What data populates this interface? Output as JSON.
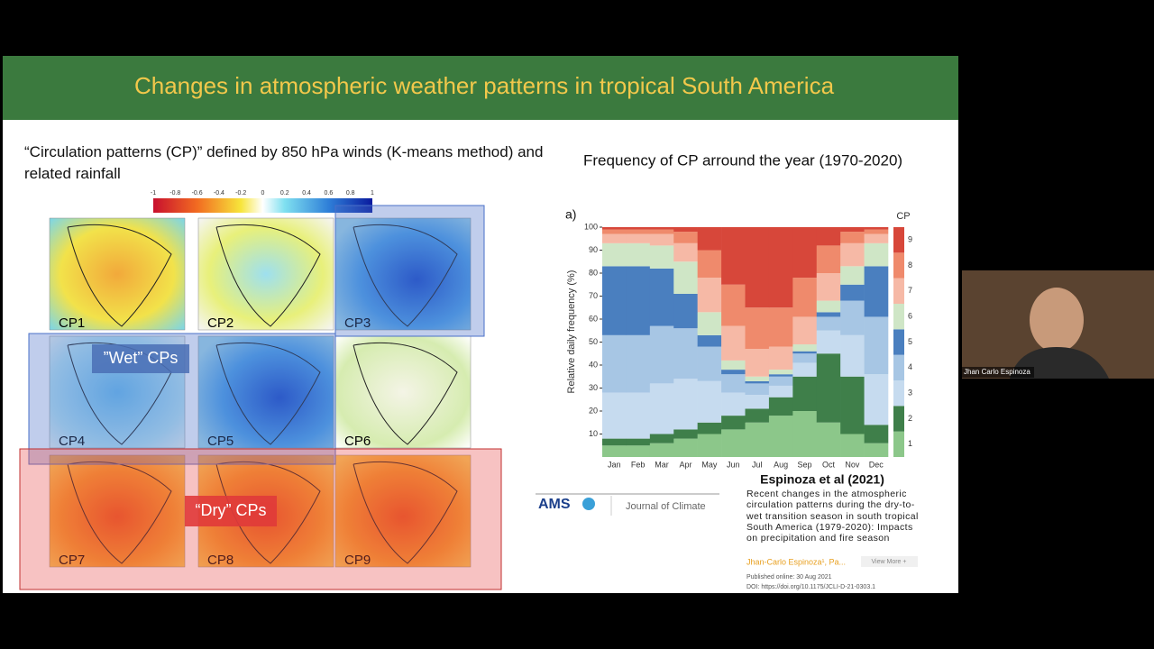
{
  "slide": {
    "title": "Changes in atmospheric weather patterns in tropical South America",
    "left_heading": "“Circulation patterns (CP)” defined by 850 hPa winds (K-means method) and related rainfall",
    "colorbar_ticks": [
      -1,
      -0.8,
      -0.6,
      -0.4,
      -0.2,
      0,
      0.2,
      0.4,
      0.6,
      0.8,
      1
    ],
    "maps": [
      "CP1",
      "CP2",
      "CP3",
      "CP4",
      "CP5",
      "CP6",
      "CP7",
      "CP8",
      "CP9"
    ],
    "wet_label": "”Wet” CPs",
    "dry_label": "“Dry” CPs",
    "right_heading": "Frequency of CP arround the year (1970-2020)",
    "citation": "Espinoza et al (2021)",
    "publisher": "AMS",
    "journal": "Journal of Climate",
    "article": {
      "title": "Recent changes in the atmospheric circulation patterns during the dry-to-wet transition season in south tropical South America (1979-2020): Impacts on precipitation and fire season",
      "authors": "Jhan-Carlo Espinoza¹, Pa...",
      "view_more": "View More +",
      "published": "Published online: 30 Aug 2021",
      "doi": "DOI: https://doi.org/10.1175/JCLI-D-21-0303.1"
    }
  },
  "chart_data": {
    "type": "bar",
    "stacked": true,
    "panel_label": "a)",
    "y_label": "Relative daily frequency (%)",
    "legend_title": "CP",
    "categories": [
      "Jan",
      "Feb",
      "Mar",
      "Apr",
      "May",
      "Jun",
      "Jul",
      "Aug",
      "Sep",
      "Oct",
      "Nov",
      "Dec"
    ],
    "ylim": [
      0,
      100
    ],
    "yticks": [
      10,
      20,
      30,
      40,
      50,
      60,
      70,
      80,
      90,
      100
    ],
    "series": [
      {
        "name": "1",
        "color": "#8cc78a",
        "values": [
          5,
          5,
          6,
          8,
          10,
          12,
          15,
          18,
          20,
          15,
          10,
          6
        ]
      },
      {
        "name": "2",
        "color": "#3f7f4a",
        "values": [
          3,
          3,
          4,
          4,
          5,
          6,
          6,
          8,
          15,
          30,
          25,
          8
        ]
      },
      {
        "name": "3",
        "color": "#c6dbef",
        "values": [
          20,
          20,
          22,
          22,
          18,
          10,
          6,
          5,
          6,
          10,
          18,
          22
        ]
      },
      {
        "name": "4",
        "color": "#a7c6e4",
        "values": [
          25,
          25,
          25,
          22,
          15,
          8,
          5,
          4,
          4,
          6,
          15,
          25
        ]
      },
      {
        "name": "5",
        "color": "#4a7fbf",
        "values": [
          30,
          30,
          25,
          15,
          5,
          2,
          1,
          1,
          1,
          2,
          7,
          22
        ]
      },
      {
        "name": "6",
        "color": "#cfe6c6",
        "values": [
          10,
          10,
          10,
          14,
          10,
          4,
          2,
          2,
          3,
          5,
          8,
          10
        ]
      },
      {
        "name": "7",
        "color": "#f6b9a6",
        "values": [
          4,
          4,
          5,
          8,
          15,
          15,
          12,
          10,
          12,
          12,
          10,
          4
        ]
      },
      {
        "name": "8",
        "color": "#ef8a6c",
        "values": [
          2,
          2,
          2,
          5,
          12,
          18,
          18,
          17,
          17,
          12,
          5,
          2
        ]
      },
      {
        "name": "9",
        "color": "#d7473a",
        "values": [
          1,
          1,
          1,
          2,
          10,
          25,
          35,
          35,
          22,
          8,
          2,
          1
        ]
      }
    ]
  },
  "participant": {
    "name": "Jhan Carlo Espinoza"
  }
}
